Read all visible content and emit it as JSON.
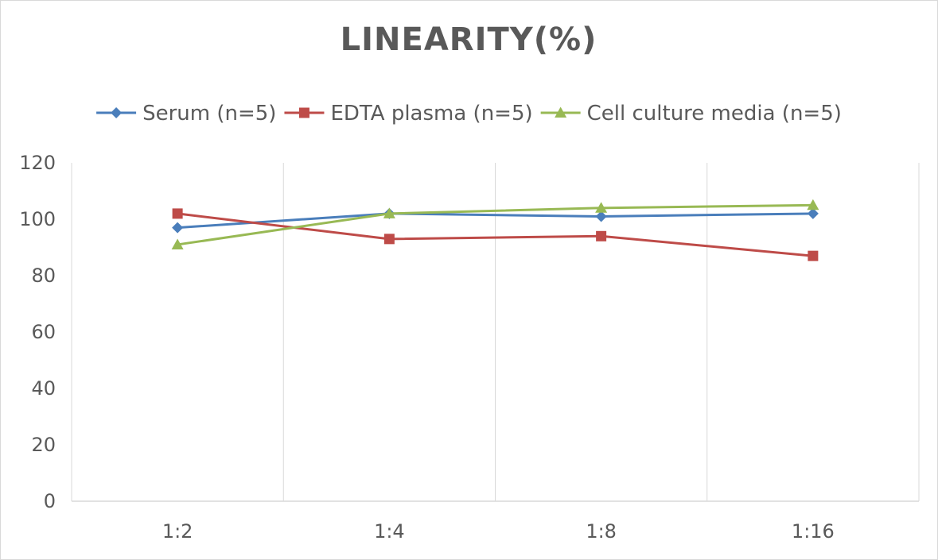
{
  "chart_data": {
    "type": "line",
    "title": "LINEARITY(%)",
    "categories": [
      "1:2",
      "1:4",
      "1:8",
      "1:16"
    ],
    "ylim": [
      0,
      120
    ],
    "yticks": [
      0,
      20,
      40,
      60,
      80,
      100,
      120
    ],
    "grid": "vertical",
    "legend_position": "top",
    "series": [
      {
        "name": "Serum (n=5)",
        "values": [
          97,
          102,
          101,
          102
        ],
        "color": "#4a7ebb",
        "marker": "diamond"
      },
      {
        "name": "EDTA plasma (n=5)",
        "values": [
          102,
          93,
          94,
          87
        ],
        "color": "#be4b48",
        "marker": "square"
      },
      {
        "name": "Cell culture media (n=5)",
        "values": [
          91,
          102,
          104,
          105
        ],
        "color": "#98b954",
        "marker": "triangle"
      }
    ]
  }
}
